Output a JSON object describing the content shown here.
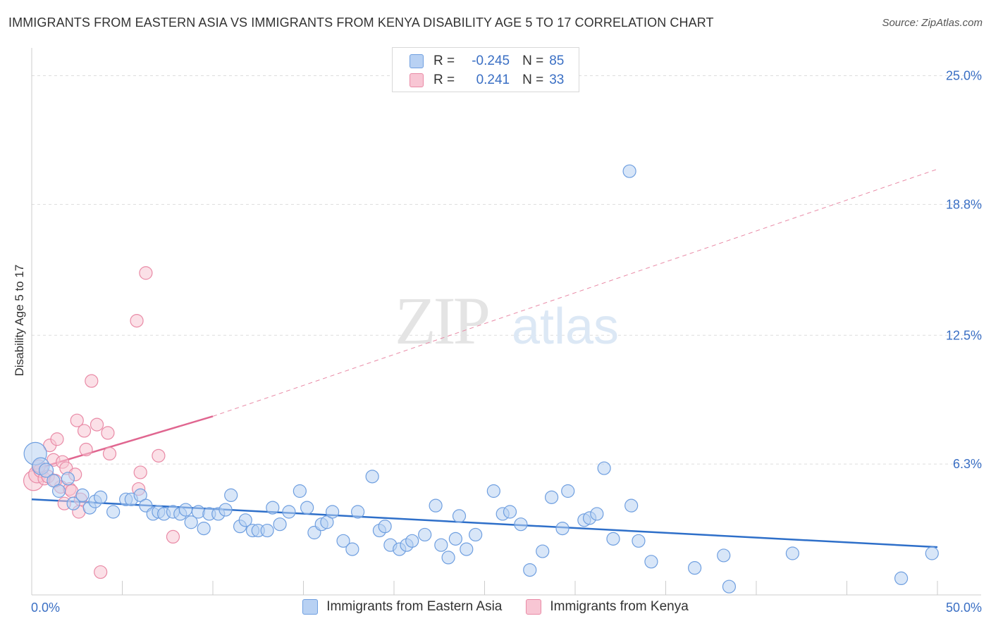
{
  "header": {
    "title": "IMMIGRANTS FROM EASTERN ASIA VS IMMIGRANTS FROM KENYA DISABILITY AGE 5 TO 17 CORRELATION CHART",
    "source": "Source: ZipAtlas.com"
  },
  "legend": {
    "rows": [
      {
        "r_label": "R =",
        "r_value": "-0.245",
        "n_label": "N =",
        "n_value": "85"
      },
      {
        "r_label": "R =",
        "r_value": "0.241",
        "n_label": "N =",
        "n_value": "33"
      }
    ]
  },
  "colors": {
    "blue_fill": "#b8d1f3",
    "blue_stroke": "#6f9fe0",
    "blue_line": "#2e6fc9",
    "pink_fill": "#f8c6d4",
    "pink_stroke": "#e98aa6",
    "pink_line": "#e06690",
    "axis_label": "#3a6fc4",
    "grid": "#dddddd"
  },
  "watermark": {
    "zip": "ZIP",
    "atlas": "atlas"
  },
  "chart_data": {
    "type": "scatter",
    "xlabel": "",
    "ylabel": "Disability Age 5 to 17",
    "xlim": [
      0,
      50
    ],
    "ylim": [
      0,
      26
    ],
    "x_tick_labels": [
      {
        "value": 0,
        "label": "0.0%"
      },
      {
        "value": 50,
        "label": "50.0%"
      }
    ],
    "y_tick_labels": [
      {
        "value": 6.3,
        "label": "6.3%"
      },
      {
        "value": 12.5,
        "label": "12.5%"
      },
      {
        "value": 18.8,
        "label": "18.8%"
      },
      {
        "value": 25.0,
        "label": "25.0%"
      }
    ],
    "legend_position": "top-center",
    "series": [
      {
        "name": "Immigrants from Eastern Asia",
        "color": "#6f9fe0",
        "trend": {
          "x0": 0,
          "y0": 4.6,
          "x1": 50,
          "y1": 2.3,
          "style": "solid"
        },
        "points": [
          [
            0.2,
            6.8,
            16
          ],
          [
            0.5,
            6.2,
            12
          ],
          [
            0.8,
            6.0,
            10
          ],
          [
            1.2,
            5.5,
            9
          ],
          [
            1.5,
            5.0,
            9
          ],
          [
            2.0,
            5.6,
            9
          ],
          [
            2.3,
            4.4,
            9
          ],
          [
            2.8,
            4.8,
            9
          ],
          [
            3.2,
            4.2,
            9
          ],
          [
            3.5,
            4.5,
            9
          ],
          [
            3.8,
            4.7,
            9
          ],
          [
            4.5,
            4.0,
            9
          ],
          [
            5.2,
            4.6,
            9
          ],
          [
            5.5,
            4.6,
            9
          ],
          [
            6.0,
            4.8,
            9
          ],
          [
            6.3,
            4.3,
            9
          ],
          [
            6.7,
            3.9,
            9
          ],
          [
            7.0,
            4.0,
            9
          ],
          [
            7.3,
            3.9,
            9
          ],
          [
            7.8,
            4.0,
            9
          ],
          [
            8.2,
            3.9,
            9
          ],
          [
            8.5,
            4.1,
            9
          ],
          [
            8.8,
            3.5,
            9
          ],
          [
            9.2,
            4.0,
            9
          ],
          [
            9.5,
            3.2,
            9
          ],
          [
            9.8,
            3.9,
            9
          ],
          [
            10.3,
            3.9,
            9
          ],
          [
            10.7,
            4.1,
            9
          ],
          [
            11.0,
            4.8,
            9
          ],
          [
            11.5,
            3.3,
            9
          ],
          [
            11.8,
            3.6,
            9
          ],
          [
            12.2,
            3.1,
            9
          ],
          [
            12.5,
            3.1,
            9
          ],
          [
            13.0,
            3.1,
            9
          ],
          [
            13.3,
            4.2,
            9
          ],
          [
            13.7,
            3.4,
            9
          ],
          [
            14.2,
            4.0,
            9
          ],
          [
            14.8,
            5.0,
            9
          ],
          [
            15.2,
            4.2,
            9
          ],
          [
            15.6,
            3.0,
            9
          ],
          [
            16.0,
            3.4,
            9
          ],
          [
            16.3,
            3.5,
            9
          ],
          [
            16.6,
            4.0,
            9
          ],
          [
            17.2,
            2.6,
            9
          ],
          [
            17.7,
            2.2,
            9
          ],
          [
            18.0,
            4.0,
            9
          ],
          [
            18.8,
            5.7,
            9
          ],
          [
            19.2,
            3.1,
            9
          ],
          [
            19.5,
            3.3,
            9
          ],
          [
            19.8,
            2.4,
            9
          ],
          [
            20.3,
            2.2,
            9
          ],
          [
            20.7,
            2.4,
            9
          ],
          [
            21.0,
            2.6,
            9
          ],
          [
            21.7,
            2.9,
            9
          ],
          [
            22.3,
            4.3,
            9
          ],
          [
            22.6,
            2.4,
            9
          ],
          [
            23.0,
            1.8,
            9
          ],
          [
            23.4,
            2.7,
            9
          ],
          [
            23.6,
            3.8,
            9
          ],
          [
            24.0,
            2.2,
            9
          ],
          [
            24.5,
            2.9,
            9
          ],
          [
            25.5,
            5.0,
            9
          ],
          [
            26.0,
            3.9,
            9
          ],
          [
            26.4,
            4.0,
            9
          ],
          [
            27.0,
            3.4,
            9
          ],
          [
            27.5,
            1.2,
            9
          ],
          [
            28.2,
            2.1,
            9
          ],
          [
            28.7,
            4.7,
            9
          ],
          [
            29.3,
            3.2,
            9
          ],
          [
            29.6,
            5.0,
            9
          ],
          [
            30.5,
            3.6,
            9
          ],
          [
            30.8,
            3.7,
            9
          ],
          [
            31.2,
            3.9,
            9
          ],
          [
            31.6,
            6.1,
            9
          ],
          [
            32.1,
            2.7,
            9
          ],
          [
            33.0,
            20.4,
            9
          ],
          [
            33.1,
            4.3,
            9
          ],
          [
            33.5,
            2.6,
            9
          ],
          [
            34.2,
            1.6,
            9
          ],
          [
            36.6,
            1.3,
            9
          ],
          [
            38.2,
            1.9,
            9
          ],
          [
            38.5,
            0.4,
            9
          ],
          [
            42.0,
            2.0,
            9
          ],
          [
            48.0,
            0.8,
            9
          ],
          [
            49.7,
            2.0,
            9
          ]
        ]
      },
      {
        "name": "Immigrants from Kenya",
        "color": "#e98aa6",
        "trend": {
          "x0": 0,
          "y0": 6.0,
          "x1": 10,
          "y1": 8.6,
          "dashed_to_x": 50,
          "dashed_to_y": 20.5,
          "style": "solid-then-dashed"
        },
        "points": [
          [
            0.1,
            5.5,
            14
          ],
          [
            0.3,
            5.8,
            12
          ],
          [
            0.5,
            6.0,
            10
          ],
          [
            0.7,
            5.6,
            9
          ],
          [
            0.9,
            5.7,
            9
          ],
          [
            1.0,
            7.2,
            9
          ],
          [
            1.2,
            6.5,
            9
          ],
          [
            1.4,
            7.5,
            9
          ],
          [
            1.6,
            5.2,
            9
          ],
          [
            1.7,
            6.4,
            9
          ],
          [
            1.9,
            6.1,
            9
          ],
          [
            1.8,
            4.4,
            9
          ],
          [
            2.1,
            5.1,
            9
          ],
          [
            2.4,
            5.8,
            9
          ],
          [
            2.6,
            4.0,
            9
          ],
          [
            2.7,
            4.6,
            9
          ],
          [
            2.5,
            8.4,
            9
          ],
          [
            2.9,
            7.9,
            9
          ],
          [
            3.0,
            7.0,
            9
          ],
          [
            3.3,
            10.3,
            9
          ],
          [
            3.6,
            8.2,
            9
          ],
          [
            3.8,
            1.1,
            9
          ],
          [
            4.2,
            7.8,
            9
          ],
          [
            4.3,
            6.8,
            9
          ],
          [
            5.8,
            13.2,
            9
          ],
          [
            6.0,
            5.9,
            9
          ],
          [
            6.3,
            15.5,
            9
          ],
          [
            7.0,
            6.7,
            9
          ],
          [
            7.8,
            2.8,
            9
          ],
          [
            5.9,
            5.1,
            9
          ],
          [
            1.3,
            5.5,
            9
          ],
          [
            2.2,
            5.0,
            9
          ],
          [
            0.4,
            6.2,
            9
          ]
        ]
      }
    ]
  }
}
